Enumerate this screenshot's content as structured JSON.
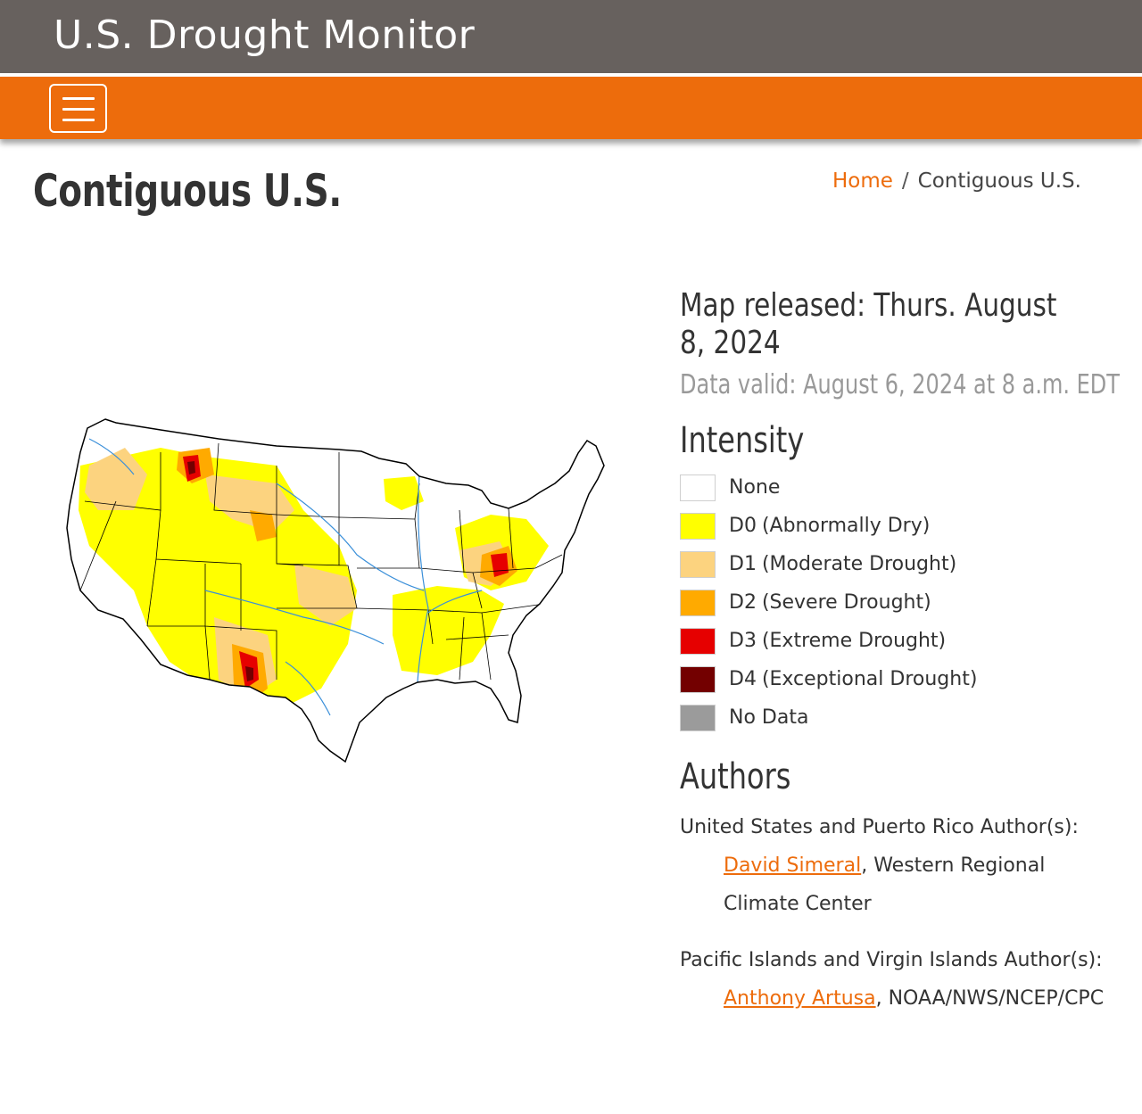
{
  "header": {
    "site_title": "U.S. Drought Monitor"
  },
  "nav": {
    "menu_icon": "hamburger-menu-icon"
  },
  "page": {
    "title": "Contiguous U.S."
  },
  "breadcrumb": {
    "home": "Home",
    "separator": "/",
    "current": "Contiguous U.S."
  },
  "map_info": {
    "released": "Map released: Thurs. August 8, 2024",
    "valid": "Data valid: August 6, 2024 at 8 a.m. EDT"
  },
  "intensity": {
    "heading": "Intensity",
    "items": [
      {
        "code": "None",
        "desc": "",
        "color": "#ffffff"
      },
      {
        "code": "D0",
        "desc": "(Abnormally Dry)",
        "color": "#ffff00"
      },
      {
        "code": "D1",
        "desc": "(Moderate Drought)",
        "color": "#fcd37f"
      },
      {
        "code": "D2",
        "desc": "(Severe Drought)",
        "color": "#ffaa00"
      },
      {
        "code": "D3",
        "desc": "(Extreme Drought)",
        "color": "#e60000"
      },
      {
        "code": "D4",
        "desc": "(Exceptional Drought)",
        "color": "#730000"
      },
      {
        "code": "No Data",
        "desc": "",
        "color": "#9b9b9b"
      }
    ]
  },
  "authors": {
    "heading": "Authors",
    "groups": [
      {
        "label": "United States and Puerto Rico Author(s):",
        "name": "David Simeral",
        "affiliation": ", Western Regional Climate Center"
      },
      {
        "label": "Pacific Islands and Virgin Islands Author(s):",
        "name": "Anthony Artusa",
        "affiliation": ", NOAA/NWS/NCEP/CPC"
      }
    ]
  },
  "colors": {
    "brand_orange": "#ed6c0c",
    "header_gray": "#67615e"
  }
}
